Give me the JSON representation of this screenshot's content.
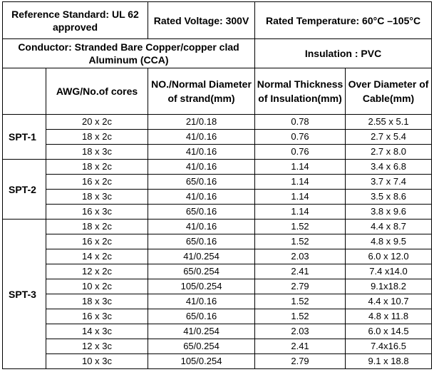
{
  "header": {
    "reference_standard": "Reference Standard: UL 62   approved",
    "rated_voltage": "Rated Voltage: 300V",
    "rated_temperature": "Rated Temperature: 60°C –105°C",
    "conductor": "Conductor: Stranded Bare Copper/copper clad Aluminum (CCA)",
    "insulation": "Insulation : PVC"
  },
  "columns": {
    "awg": "AWG/No.of cores",
    "strand": "NO./Normal Diameter of strand(mm)",
    "thickness": "Normal Thickness of Insulation(mm)",
    "diameter": "Over Diameter of Cable(mm)"
  },
  "groups": [
    {
      "name": "SPT-1",
      "rows": [
        [
          "20 x 2c",
          "21/0.18",
          "0.78",
          "2.55 x 5.1"
        ],
        [
          "18 x 2c",
          "41/0.16",
          "0.76",
          "2.7 x 5.4"
        ],
        [
          "18 x 3c",
          "41/0.16",
          "0.76",
          "2.7 x 8.0"
        ]
      ]
    },
    {
      "name": "SPT-2",
      "rows": [
        [
          "18 x 2c",
          "41/0.16",
          "1.14",
          "3.4 x 6.8"
        ],
        [
          "16 x 2c",
          "65/0.16",
          "1.14",
          "3.7 x 7.4"
        ],
        [
          "18 x 3c",
          "41/0.16",
          "1.14",
          "3.5 x 8.6"
        ],
        [
          "16 x 3c",
          "65/0.16",
          "1.14",
          "3.8 x 9.6"
        ]
      ]
    },
    {
      "name": "SPT-3",
      "rows": [
        [
          "18 x 2c",
          "41/0.16",
          "1.52",
          "4.4 x 8.7"
        ],
        [
          "16 x 2c",
          "65/0.16",
          "1.52",
          "4.8 x 9.5"
        ],
        [
          "14 x 2c",
          "41/0.254",
          "2.03",
          "6.0 x 12.0"
        ],
        [
          "12 x 2c",
          "65/0.254",
          "2.41",
          "7.4 x14.0"
        ],
        [
          "10 x 2c",
          "105/0.254",
          "2.79",
          "9.1x18.2"
        ],
        [
          "18 x 3c",
          "41/0.16",
          "1.52",
          "4.4 x 10.7"
        ],
        [
          "16 x 3c",
          "65/0.16",
          "1.52",
          "4.8 x 11.8"
        ],
        [
          "14 x 3c",
          "41/0.254",
          "2.03",
          "6.0 x 14.5"
        ],
        [
          "12 x 3c",
          "65/0.254",
          "2.41",
          "7.4x16.5"
        ],
        [
          "10 x 3c",
          "105/0.254",
          "2.79",
          "9.1 x 18.8"
        ]
      ]
    }
  ]
}
